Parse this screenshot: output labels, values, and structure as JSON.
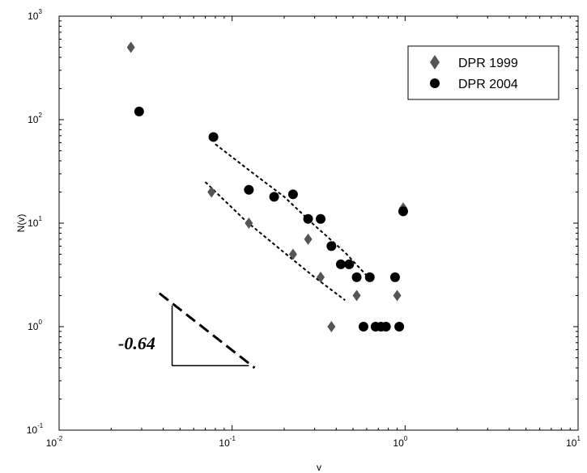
{
  "chart_data": {
    "type": "scatter",
    "title": "",
    "xlabel": "v",
    "ylabel": "N(v)",
    "xscale": "log",
    "yscale": "log",
    "xlim": [
      0.01,
      10
    ],
    "ylim": [
      0.1,
      1000
    ],
    "x_ticks": [
      {
        "base": "10",
        "exp": "-2"
      },
      {
        "base": "10",
        "exp": "-1"
      },
      {
        "base": "10",
        "exp": "0"
      },
      {
        "base": "10",
        "exp": "1"
      }
    ],
    "y_ticks": [
      {
        "base": "10",
        "exp": "-1"
      },
      {
        "base": "10",
        "exp": "0"
      },
      {
        "base": "10",
        "exp": "1"
      },
      {
        "base": "10",
        "exp": "2"
      },
      {
        "base": "10",
        "exp": "3"
      }
    ],
    "grid": false,
    "legend_position": "top-right",
    "series": [
      {
        "name": "DPR 1999",
        "marker": "diamond",
        "color": "#555555",
        "x": [
          0.026,
          0.076,
          0.125,
          0.225,
          0.275,
          0.325,
          0.375,
          0.525,
          0.9,
          0.975
        ],
        "y": [
          500,
          20,
          10,
          5,
          7,
          3,
          1,
          2,
          2,
          14
        ]
      },
      {
        "name": "DPR 2004",
        "marker": "circle",
        "color": "#000000",
        "x": [
          0.029,
          0.078,
          0.125,
          0.175,
          0.225,
          0.275,
          0.325,
          0.375,
          0.425,
          0.475,
          0.525,
          0.575,
          0.625,
          0.675,
          0.725,
          0.775,
          0.875,
          0.925,
          0.975
        ],
        "y": [
          120,
          68,
          21,
          18,
          19,
          11,
          11,
          6,
          4,
          4,
          3,
          1,
          3,
          1,
          1,
          1,
          3,
          1,
          13
        ]
      }
    ],
    "fit_lines": [
      {
        "series": "DPR 1999",
        "x": [
          0.07,
          0.12,
          0.2,
          0.3,
          0.45
        ],
        "y": [
          25,
          10.5,
          5.2,
          3.0,
          1.8
        ]
      },
      {
        "series": "DPR 2004",
        "x": [
          0.08,
          0.13,
          0.2,
          0.3,
          0.45,
          0.65
        ],
        "y": [
          58,
          31,
          18,
          9.5,
          5.2,
          2.7
        ]
      }
    ],
    "annotation": {
      "text": "-0.64",
      "slope_line": {
        "x": [
          0.038,
          0.135
        ],
        "y": [
          2.1,
          0.4
        ]
      },
      "triangle": {
        "x_start": 0.045,
        "x_end": 0.125,
        "y_top": 1.6,
        "y_base": 0.42
      }
    }
  }
}
